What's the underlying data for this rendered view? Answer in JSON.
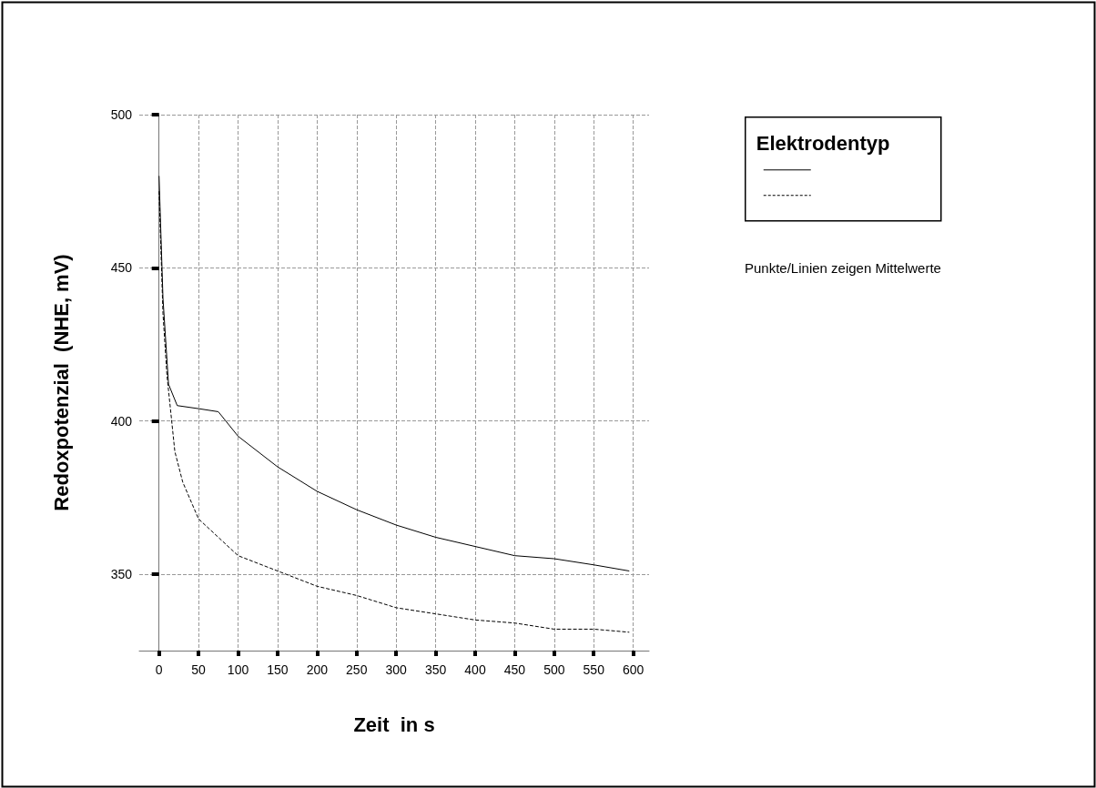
{
  "chart_data": {
    "type": "line",
    "xlabel": "Zeit  in s",
    "ylabel": "Redoxpotenzial  (NHE, mV)",
    "legend_title": "Elektrodentyp",
    "annotations": [
      "Punkte/Linien zeigen Mittelwerte"
    ],
    "grid": true,
    "marker": "none",
    "xlim": [
      -25,
      620
    ],
    "xticks": [
      0,
      50,
      100,
      150,
      200,
      250,
      300,
      350,
      400,
      450,
      500,
      550,
      600
    ],
    "ylim": [
      325,
      500
    ],
    "yticks": [
      350,
      400,
      450,
      500
    ],
    "x": [
      0,
      5,
      12,
      23,
      50,
      75,
      100,
      150,
      200,
      250,
      300,
      350,
      400,
      450,
      500,
      550,
      595
    ],
    "series": [
      {
        "color": "#000000",
        "line_style": "solid",
        "values": [
          480,
          440,
          412,
          405,
          404,
          403,
          395,
          385,
          377,
          371,
          366,
          362,
          359,
          356,
          355,
          353,
          351
        ]
      },
      {
        "color": "#000000",
        "line_style": "dashed",
        "x": [
          0,
          5,
          10,
          20,
          30,
          50,
          75,
          100,
          150,
          200,
          250,
          300,
          350,
          400,
          450,
          500,
          550,
          595
        ],
        "values": [
          475,
          435,
          415,
          390,
          380,
          368,
          362,
          356,
          351,
          346,
          343,
          339,
          337,
          335,
          334,
          332,
          332,
          331
        ]
      }
    ]
  }
}
